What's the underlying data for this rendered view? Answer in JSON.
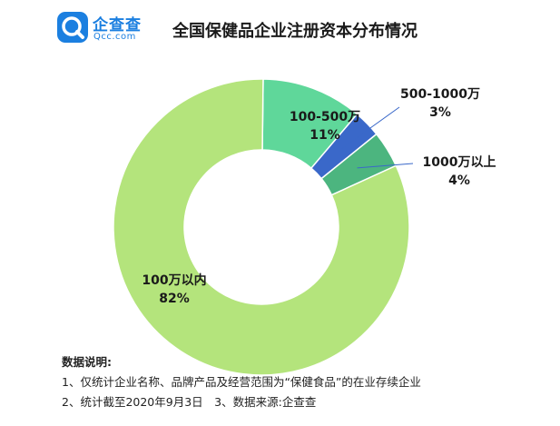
{
  "header": {
    "logo_text": "企查查",
    "logo_sub": "Qcc.com",
    "title": "全国保健品企业注册资本分布情况"
  },
  "chart_data": {
    "type": "pie",
    "variant": "donut",
    "title": "全国保健品企业注册资本分布情况",
    "slices": [
      {
        "label": "100万以内",
        "value": 82,
        "display": "82%",
        "color": "#b4e47c"
      },
      {
        "label": "100-500万",
        "value": 11,
        "display": "11%",
        "color": "#5fd79a"
      },
      {
        "label": "500-1000万",
        "value": 3,
        "display": "3%",
        "color": "#3a68c9"
      },
      {
        "label": "1000万以上",
        "value": 4,
        "display": "4%",
        "color": "#4cb57f"
      }
    ]
  },
  "notes": {
    "title": "数据说明:",
    "line1": "1、仅统计企业名称、品牌产品及经营范围为“保健食品”的在业存续企业",
    "line2": "2、统计截至2020年9月3日　3、数据来源:企查查"
  }
}
